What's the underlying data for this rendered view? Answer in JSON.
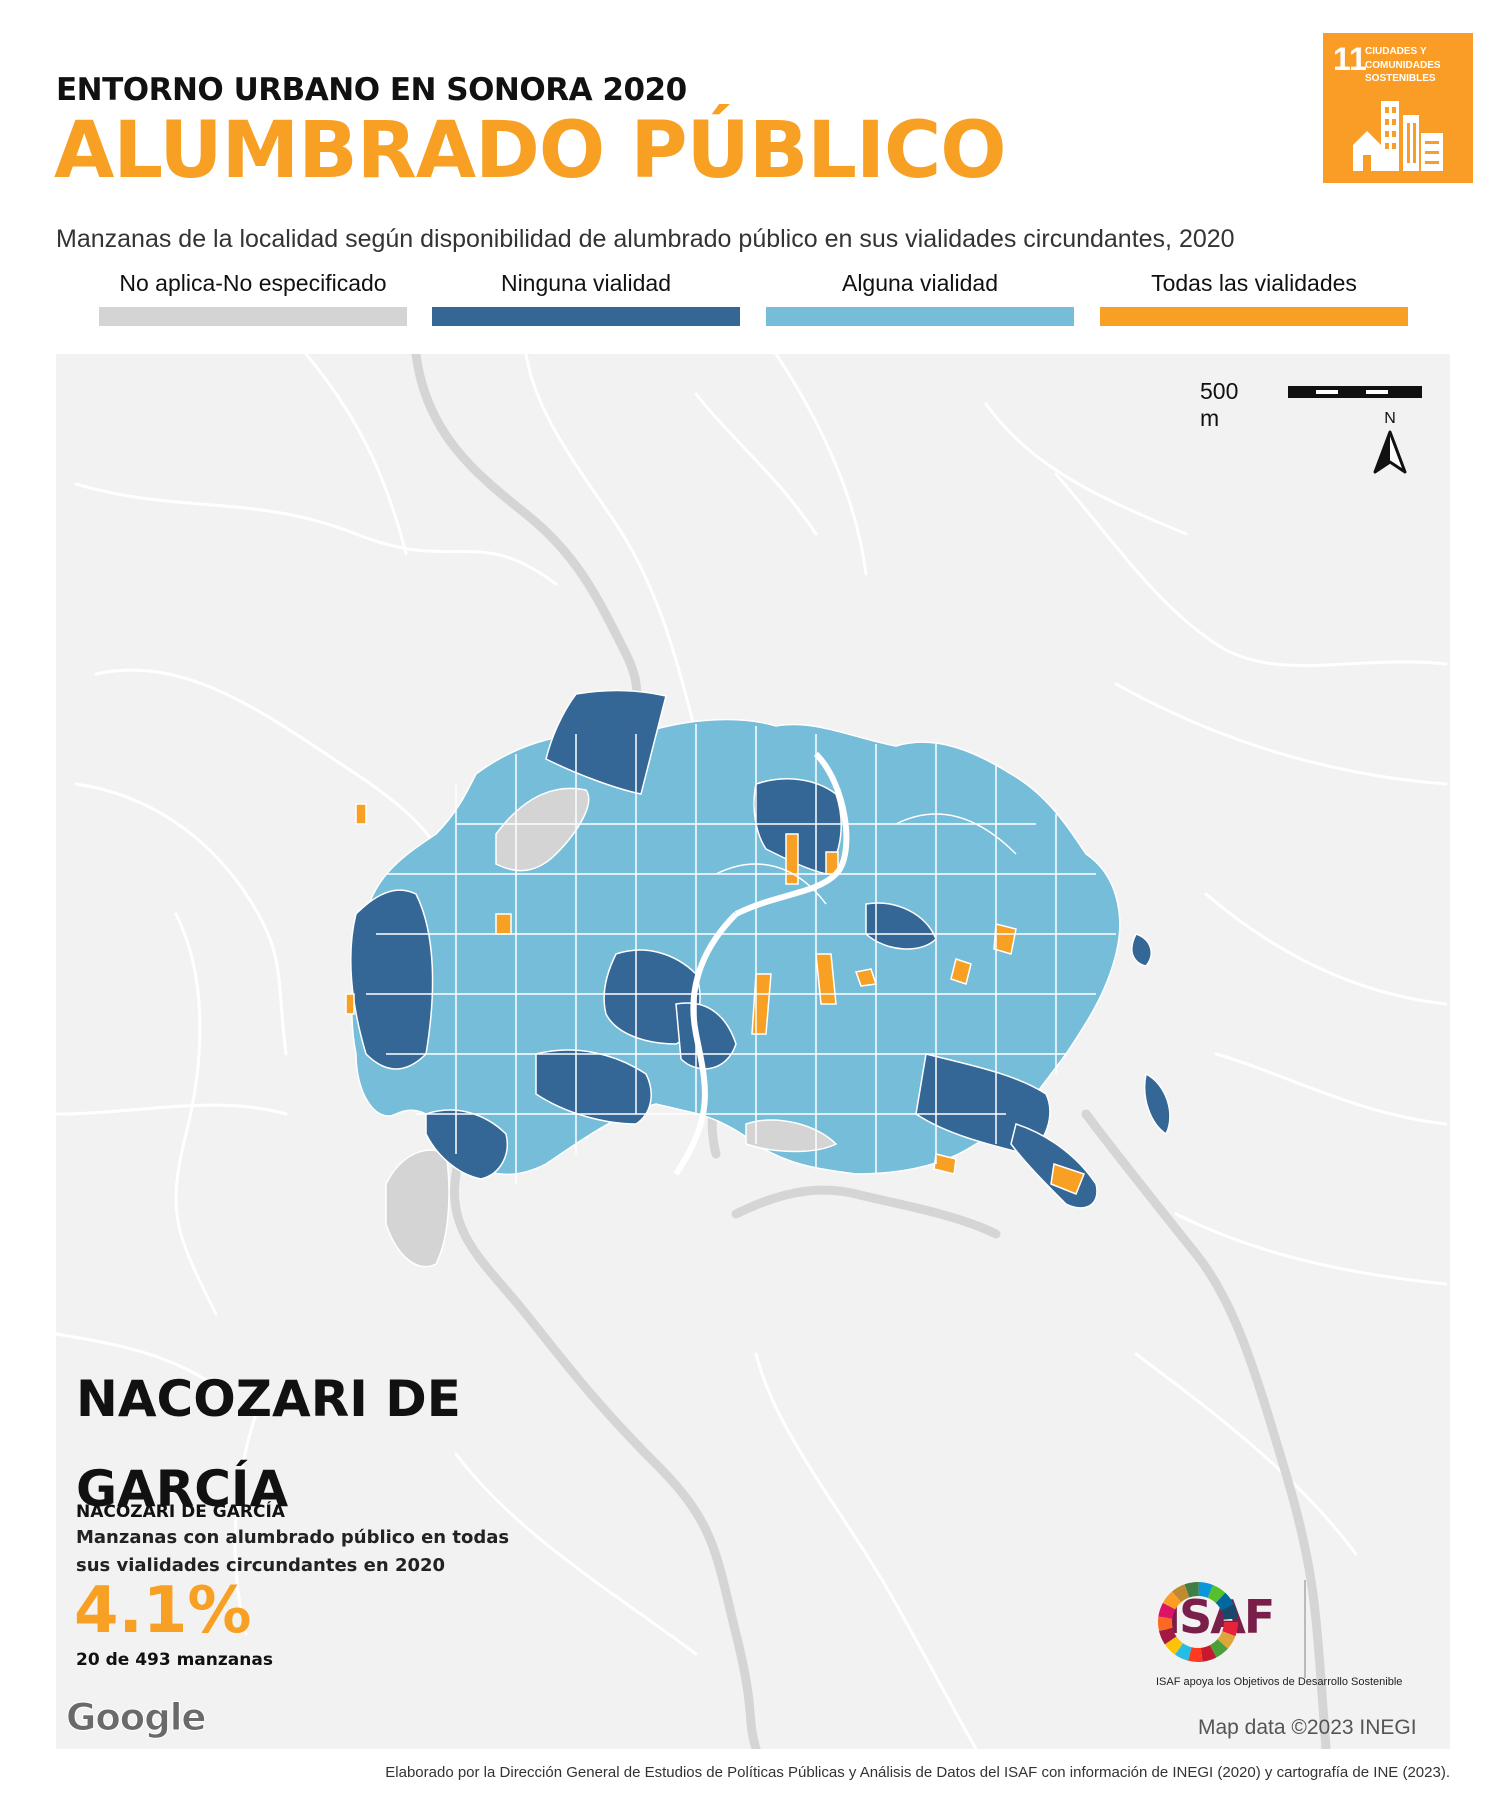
{
  "header": {
    "subtitle": "ENTORNO URBANO EN SONORA 2020",
    "title": "ALUMBRADO PÚBLICO",
    "description": "Manzanas de la localidad según disponibilidad de alumbrado público en sus vialidades circundantes, 2020"
  },
  "sdg_badge": {
    "number": "11",
    "text": "CIUDADES Y COMUNIDADES SOSTENIBLES",
    "color": "#f99d26",
    "icon": "city-buildings-icon"
  },
  "legend": [
    {
      "label": "No aplica-No especificado",
      "color": "#d4d4d4"
    },
    {
      "label": "Ninguna vialidad",
      "color": "#346795"
    },
    {
      "label": "Alguna vialidad",
      "color": "#75bdd8"
    },
    {
      "label": "Todas las vialidades",
      "color": "#f7a023"
    }
  ],
  "map": {
    "scale_label": "500 m",
    "north_label": "N",
    "background_color": "#f2f2f2",
    "road_color": "#ffffff",
    "highway_color": "#d5d5d5"
  },
  "locality": {
    "name": "NACOZARI DE GARCÍA",
    "municipality": "NACOZARI DE GARCÍA",
    "stat_description": "Manzanas con alumbrado público en todas sus vialidades circundantes en 2020",
    "percentage": "4.1%",
    "count_text": "20 de 493 manzanas"
  },
  "attribution": {
    "google": "Google",
    "map_data": "Map data ©2023 INEGI"
  },
  "logos": {
    "isaf": "ISAF",
    "caption": "ISAF apoya los Objetivos de Desarrollo Sostenible"
  },
  "footer": "Elaborado por la Dirección General de Estudios de Políticas Públicas y Análisis de Datos del ISAF con información de INEGI (2020) y cartografía de INE (2023)."
}
